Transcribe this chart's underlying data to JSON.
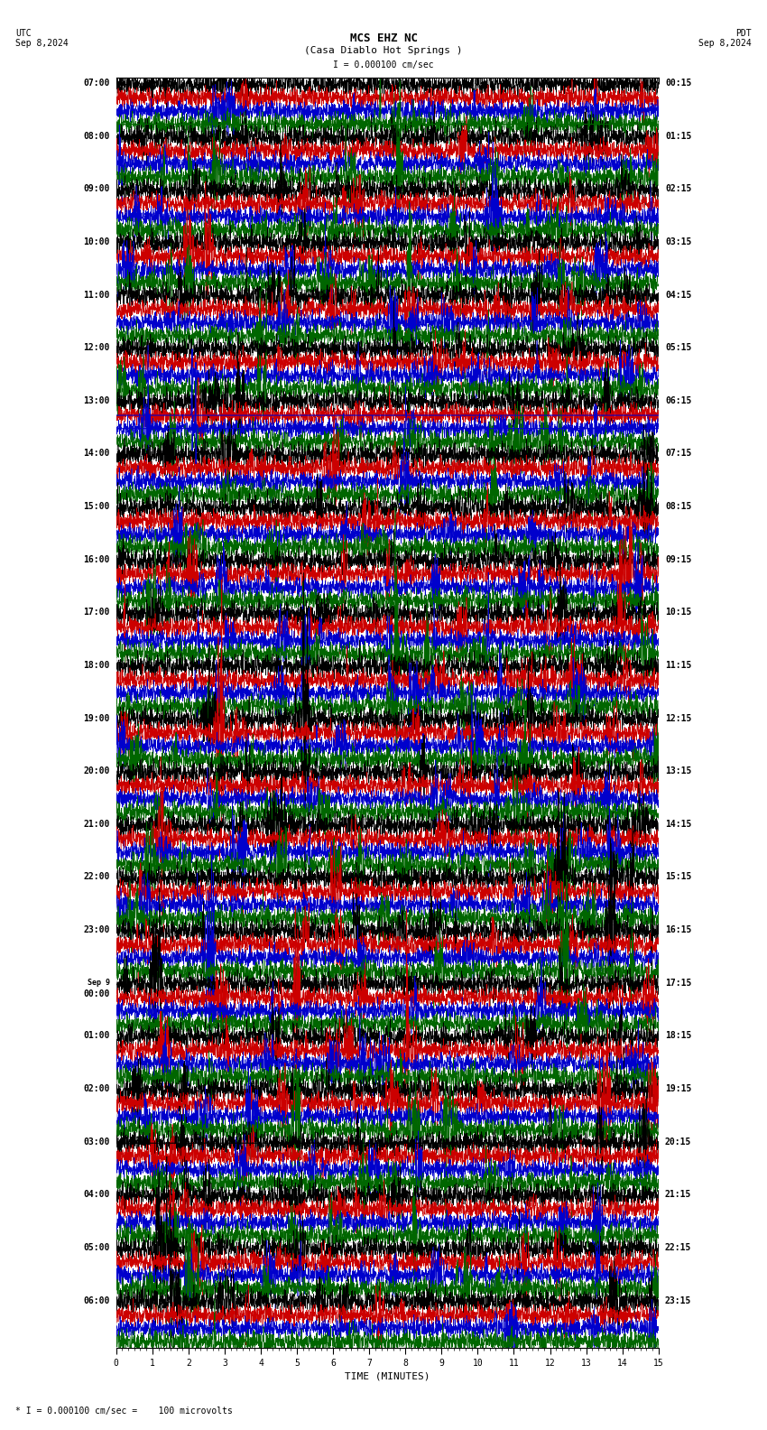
{
  "title_line1": "MCS EHZ NC",
  "title_line2": "(Casa Diablo Hot Springs )",
  "scale_label": "= 0.000100 cm/sec",
  "utc_label": "UTC",
  "pdt_label": "PDT",
  "date_left": "Sep 8,2024",
  "date_right": "Sep 8,2024",
  "xlabel": "TIME (MINUTES)",
  "footer": "= 0.000100 cm/sec =    100 microvolts",
  "bg_color": "#ffffff",
  "trace_colors": [
    "#000000",
    "#cc0000",
    "#0000cc",
    "#006600"
  ],
  "left_times": [
    "07:00",
    "08:00",
    "09:00",
    "10:00",
    "11:00",
    "12:00",
    "13:00",
    "14:00",
    "15:00",
    "16:00",
    "17:00",
    "18:00",
    "19:00",
    "20:00",
    "21:00",
    "22:00",
    "23:00",
    "Sep 9\n00:00",
    "01:00",
    "02:00",
    "03:00",
    "04:00",
    "05:00",
    "06:00"
  ],
  "right_times": [
    "00:15",
    "01:15",
    "02:15",
    "03:15",
    "04:15",
    "05:15",
    "06:15",
    "07:15",
    "08:15",
    "09:15",
    "10:15",
    "11:15",
    "12:15",
    "13:15",
    "14:15",
    "15:15",
    "16:15",
    "17:15",
    "18:15",
    "19:15",
    "20:15",
    "21:15",
    "22:15",
    "23:15"
  ],
  "n_rows": 24,
  "n_traces_per_row": 4,
  "xmin": 0,
  "xmax": 15,
  "font_size_title": 9,
  "font_size_labels": 7,
  "font_size_times": 7,
  "grid_color": "#888888",
  "grid_alpha": 0.5,
  "grid_lw": 0.4
}
